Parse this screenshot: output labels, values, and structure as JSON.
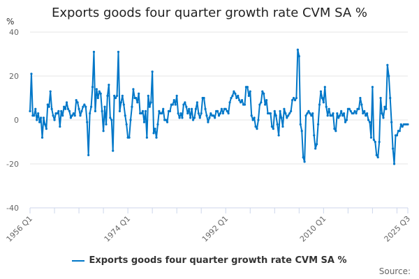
{
  "chart_data": {
    "type": "line",
    "title": "Exports goods four quarter growth rate CVM SA %",
    "ylabel": "%",
    "xlabel": "",
    "ylim": [
      -40,
      40
    ],
    "yticks": [
      40,
      20,
      0,
      -20,
      -40
    ],
    "x_start": "1956 Q1",
    "x_end": "2025 Q3",
    "xtick_labels": [
      "1956 Q1",
      "1974 Q1",
      "1992 Q1",
      "2010 Q1",
      "2025 Q3"
    ],
    "grid": true,
    "legend_position": "bottom",
    "color": "#0077c8",
    "series": [
      {
        "name": "Exports goods four quarter growth rate CVM SA %",
        "values": [
          4,
          21,
          2,
          2,
          5,
          0,
          3,
          -1,
          1,
          -8,
          1,
          -2,
          -4,
          7,
          6,
          13,
          5,
          2,
          0,
          3,
          3,
          4,
          -3,
          4,
          2,
          6,
          5,
          8,
          5,
          4,
          1,
          2,
          3,
          2,
          9,
          8,
          5,
          2,
          4,
          6,
          7,
          6,
          -1,
          -16,
          3,
          6,
          15,
          31,
          4,
          14,
          10,
          13,
          12,
          4,
          -5,
          6,
          -2,
          11,
          16,
          1,
          0,
          -14,
          11,
          10,
          11,
          31,
          4,
          8,
          11,
          7,
          2,
          -2,
          -8,
          -8,
          0,
          6,
          14,
          10,
          10,
          8,
          12,
          3,
          3,
          4,
          -1,
          4,
          -8,
          11,
          6,
          8,
          22,
          -6,
          -4,
          -8,
          -2,
          4,
          3,
          3,
          5,
          0,
          0,
          -1,
          4,
          4,
          7,
          7,
          9,
          7,
          11,
          3,
          1,
          3,
          1,
          7,
          8,
          6,
          3,
          5,
          1,
          5,
          0,
          1,
          5,
          8,
          3,
          1,
          3,
          10,
          10,
          5,
          2,
          -1,
          1,
          3,
          2,
          2,
          1,
          4,
          4,
          2,
          3,
          5,
          3,
          5,
          5,
          4,
          3,
          8,
          10,
          11,
          13,
          12,
          10,
          11,
          9,
          8,
          9,
          7,
          7,
          15,
          15,
          11,
          13,
          2,
          0,
          1,
          -3,
          -4,
          0,
          7,
          8,
          13,
          12,
          7,
          9,
          3,
          3,
          3,
          -3,
          -4,
          4,
          2,
          -2,
          -7,
          4,
          1,
          -3,
          5,
          3,
          1,
          2,
          3,
          4,
          9,
          10,
          9,
          10,
          32,
          29,
          -2,
          -5,
          -17,
          -19,
          2,
          3,
          4,
          3,
          2,
          3,
          -7,
          -13,
          -11,
          -2,
          7,
          13,
          10,
          8,
          15,
          6,
          2,
          5,
          2,
          2,
          3,
          -4,
          -5,
          3,
          1,
          2,
          4,
          2,
          3,
          -1,
          0,
          5,
          5,
          4,
          3,
          3,
          4,
          3,
          5,
          5,
          10,
          7,
          3,
          4,
          2,
          3,
          0,
          -1,
          -8,
          15,
          -9,
          -10,
          -16,
          -17,
          -10,
          10,
          3,
          1,
          6,
          5,
          25,
          20,
          10,
          -1,
          -13,
          -20,
          -7,
          -7,
          -5,
          -5,
          -2,
          -3,
          -2,
          -2,
          -2,
          -2
        ]
      }
    ]
  },
  "source_label": "Source:"
}
